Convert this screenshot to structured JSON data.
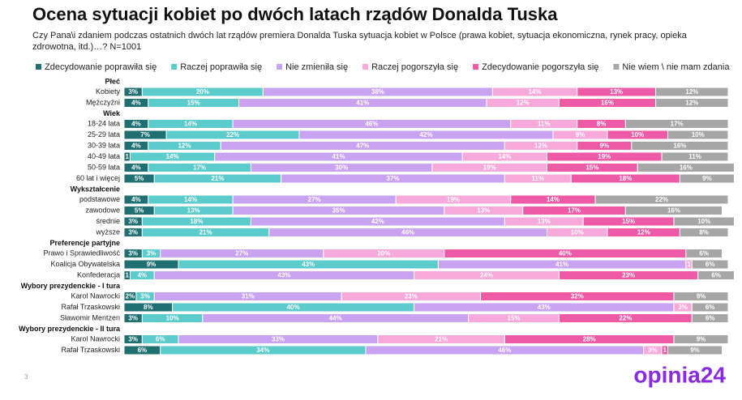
{
  "chart_data": {
    "type": "stacked-bar-100",
    "title": "Ocena sytuacji kobiet po dwóch latach rządów Donalda Tuska",
    "subtitle": "Czy Pana\\i zdaniem podczas ostatnich dwóch lat rządów premiera Donalda Tuska sytuacja kobiet w Polsce (prawa kobiet, sytuacja ekonomiczna, rynek pracy, opieka zdrowotna, itd.)…? N=1001",
    "xlim": [
      0,
      100
    ],
    "series": [
      {
        "name": "Zdecydowanie poprawiła się",
        "color": "#1f6f73"
      },
      {
        "name": "Raczej poprawiła się",
        "color": "#5ccbcb"
      },
      {
        "name": "Nie zmieniła się",
        "color": "#c9a3f2"
      },
      {
        "name": "Raczej pogorszyła się",
        "color": "#f6a9da"
      },
      {
        "name": "Zdecydowanie pogorszyła się",
        "color": "#ee5aa6"
      },
      {
        "name": "Nie wiem \\ nie mam zdania",
        "color": "#a6a6a6"
      }
    ],
    "groups": [
      {
        "name": "Płeć",
        "categories": [
          "Kobiety",
          "Mężczyźni"
        ],
        "values": [
          [
            3,
            20,
            38,
            14,
            13,
            12
          ],
          [
            4,
            15,
            41,
            12,
            16,
            12
          ]
        ],
        "value_labels": [
          [
            "3%",
            "20%",
            "38%",
            "14%",
            "13%",
            "12%"
          ],
          [
            "4%",
            "15%",
            "41%",
            "12%",
            "16%",
            "12%"
          ]
        ]
      },
      {
        "name": "Wiek",
        "categories": [
          "18-24 lata",
          "25-29 lata",
          "30-39 lata",
          "40-49 lata",
          "50-59 lata",
          "60 lat i więcej"
        ],
        "values": [
          [
            4,
            14,
            46,
            11,
            8,
            17
          ],
          [
            7,
            22,
            42,
            9,
            10,
            10
          ],
          [
            4,
            12,
            47,
            12,
            9,
            16
          ],
          [
            1,
            14,
            41,
            14,
            19,
            11
          ],
          [
            4,
            17,
            30,
            19,
            15,
            16
          ],
          [
            5,
            21,
            37,
            11,
            18,
            9
          ]
        ],
        "value_labels": [
          [
            "4%",
            "14%",
            "46%",
            "11%",
            "8%",
            "17%"
          ],
          [
            "7%",
            "22%",
            "42%",
            "9%",
            "10%",
            "10%"
          ],
          [
            "4%",
            "12%",
            "47%",
            "12%",
            "9%",
            "16%"
          ],
          [
            "1",
            "14%",
            "41%",
            "14%",
            "19%",
            "11%"
          ],
          [
            "4%",
            "17%",
            "30%",
            "19%",
            "15%",
            "16%"
          ],
          [
            "5%",
            "21%",
            "37%",
            "11%",
            "18%",
            "9%"
          ]
        ]
      },
      {
        "name": "Wykształcenie",
        "categories": [
          "podstawowe",
          "zawodowe",
          "średnie",
          "wyższe"
        ],
        "values": [
          [
            4,
            14,
            27,
            19,
            14,
            22
          ],
          [
            5,
            13,
            35,
            13,
            17,
            16
          ],
          [
            3,
            18,
            42,
            13,
            15,
            10
          ],
          [
            3,
            21,
            46,
            10,
            12,
            8
          ]
        ],
        "value_labels": [
          [
            "4%",
            "14%",
            "27%",
            "19%",
            "14%",
            "22%"
          ],
          [
            "5%",
            "13%",
            "35%",
            "13%",
            "17%",
            "16%"
          ],
          [
            "3%",
            "18%",
            "42%",
            "13%",
            "15%",
            "10%"
          ],
          [
            "3%",
            "21%",
            "46%",
            "10%",
            "12%",
            "8%"
          ]
        ]
      },
      {
        "name": "Preferencje partyjne",
        "categories": [
          "Prawo i Sprawiedliwość",
          "Koalicja Obywatelska",
          "Konfederacja"
        ],
        "values": [
          [
            3,
            3,
            27,
            20,
            40,
            6
          ],
          [
            9,
            43,
            41,
            1,
            null,
            6
          ],
          [
            1,
            4,
            43,
            24,
            23,
            6
          ]
        ],
        "value_labels": [
          [
            "3%",
            "3%",
            "27%",
            "20%",
            "40%",
            "6%"
          ],
          [
            "9%",
            "43%",
            "41%",
            "1",
            null,
            "6%"
          ],
          [
            "1",
            "4%",
            "43%",
            "24%",
            "23%",
            "6%"
          ]
        ]
      },
      {
        "name": "Wybory prezydenckie - I tura",
        "categories": [
          "Karol Nawrocki",
          "Rafał Trzaskowski",
          "Sławomir Mentzen"
        ],
        "values": [
          [
            2,
            3,
            31,
            23,
            32,
            9
          ],
          [
            8,
            40,
            43,
            3,
            null,
            6
          ],
          [
            3,
            10,
            44,
            15,
            22,
            6
          ]
        ],
        "value_labels": [
          [
            "2%",
            "3%",
            "31%",
            "23%",
            "32%",
            "9%"
          ],
          [
            "8%",
            "40%",
            "43%",
            "3%",
            null,
            "6%"
          ],
          [
            "3%",
            "10%",
            "44%",
            "15%",
            "22%",
            "6%"
          ]
        ]
      },
      {
        "name": "Wybory prezydenckie - II tura",
        "categories": [
          "Karol Nawrocki",
          "Rafał Trzaskowski"
        ],
        "values": [
          [
            3,
            6,
            33,
            21,
            28,
            9
          ],
          [
            6,
            34,
            46,
            3,
            1,
            9
          ]
        ],
        "value_labels": [
          [
            "3%",
            "6%",
            "33%",
            "21%",
            "28%",
            "9%"
          ],
          [
            "6%",
            "34%",
            "46%",
            "3%",
            "1",
            "9%"
          ]
        ]
      }
    ]
  },
  "footer": {
    "page": "3",
    "logo": "opinia24"
  }
}
